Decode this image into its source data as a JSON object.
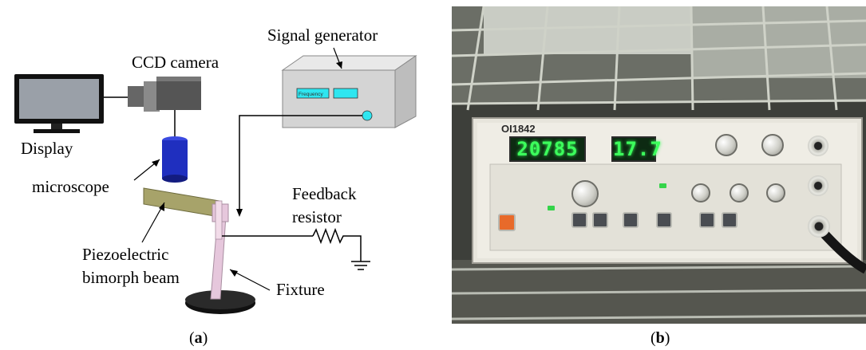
{
  "panel_a": {
    "labels": {
      "signal_generator": "Signal generator",
      "frequency_label": "Frequency",
      "ccd_camera": "CCD camera",
      "display": "Display",
      "microscope": "microscope",
      "feedback_line1": "Feedback",
      "feedback_line2": "resistor",
      "piezo_line1": "Piezoelectric",
      "piezo_line2": "bimorph beam",
      "fixture": "Fixture"
    },
    "caption": "a"
  },
  "panel_b": {
    "device": {
      "model": "OI1842",
      "freq_display": "20785",
      "amp_display": "17.7"
    },
    "caption": "b"
  },
  "colors": {
    "generator_screen": "#2ee6f0",
    "microscope": "#1f2fbf",
    "beam": "#a7a36a",
    "fixture": "#e6c7dc",
    "lcd_text": "#3cff5c"
  }
}
